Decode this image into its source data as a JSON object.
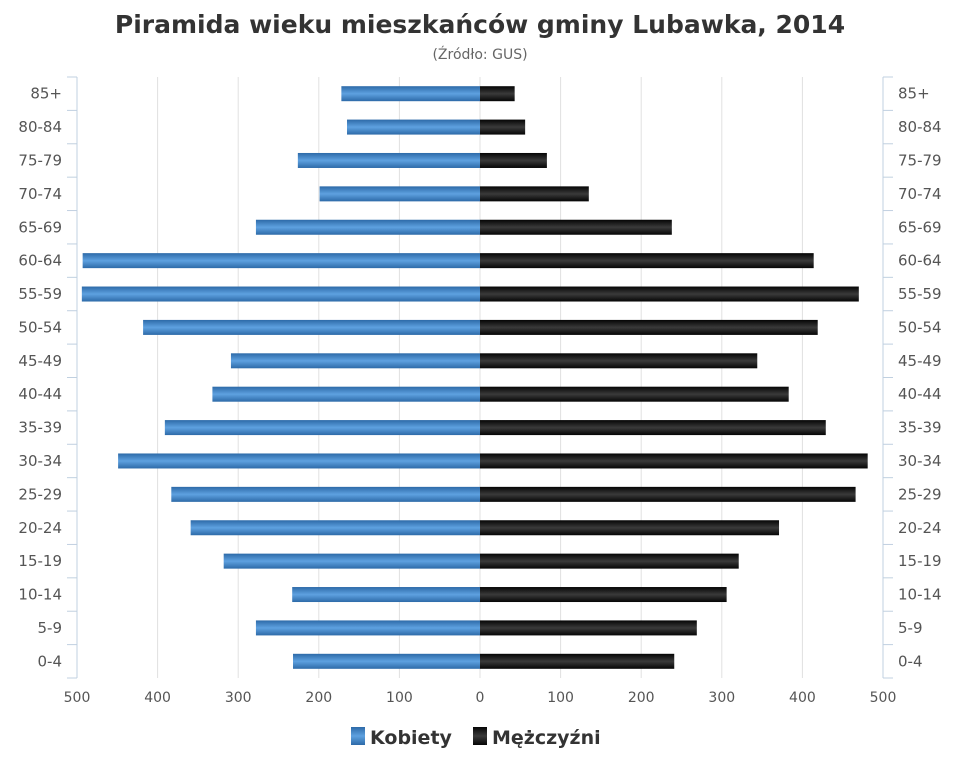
{
  "chart_data": {
    "type": "bar",
    "orientation": "horizontal-pyramid",
    "title": "Piramida wieku mieszkańców gminy Lubawka, 2014",
    "subtitle": "(Źródło: GUS)",
    "categories": [
      "85+",
      "80-84",
      "75-79",
      "70-74",
      "65-69",
      "60-64",
      "55-59",
      "50-54",
      "45-49",
      "40-44",
      "35-39",
      "30-34",
      "25-29",
      "20-24",
      "15-19",
      "10-14",
      "5-9",
      "0-4"
    ],
    "series": [
      {
        "name": "Kobiety",
        "side": "left",
        "color": "#3a78b8",
        "values": [
          172,
          165,
          226,
          199,
          278,
          493,
          494,
          418,
          309,
          332,
          391,
          449,
          383,
          359,
          318,
          233,
          278,
          232
        ]
      },
      {
        "name": "Mężczyźni",
        "side": "right",
        "color": "#1a1a1a",
        "values": [
          43,
          56,
          83,
          135,
          238,
          414,
          470,
          419,
          344,
          383,
          429,
          481,
          466,
          371,
          321,
          306,
          269,
          241
        ]
      }
    ],
    "xticks": [
      "500",
      "400",
      "300",
      "200",
      "100",
      "0",
      "100",
      "200",
      "300",
      "400",
      "500"
    ],
    "xlim": [
      -500,
      500
    ],
    "grid": true,
    "legend": "bottom"
  }
}
